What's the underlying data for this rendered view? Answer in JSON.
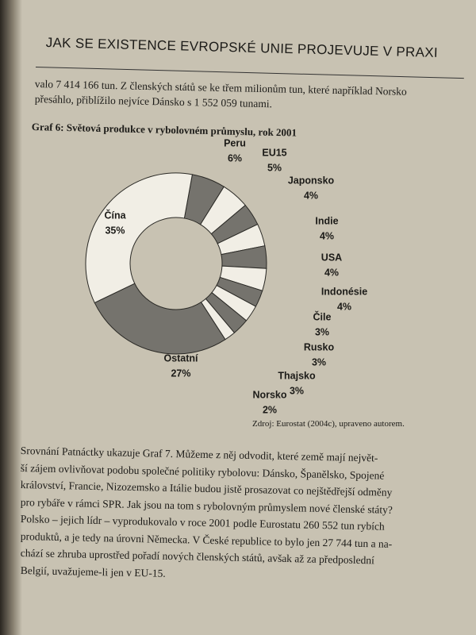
{
  "header": {
    "title": "JAK SE EXISTENCE EVROPSKÉ UNIE PROJEVUJE V PRAXI"
  },
  "intro": [
    "valo 7 414 166 tun. Z členských států se ke třem milionům tun, které například Norsko",
    "přesáhlo, přiblížilo nejvíce Dánsko s 1 552 059 tunami."
  ],
  "chart_data": {
    "type": "donut",
    "title": "Graf 6: Světová produkce v rybolovném průmyslu, rok 2001",
    "categories": [
      "Peru",
      "EU15",
      "Japonsko",
      "Indie",
      "USA",
      "Indonésie",
      "Čile",
      "Rusko",
      "Thajsko",
      "Norsko",
      "Ostatní",
      "Čína"
    ],
    "values": [
      6,
      5,
      4,
      4,
      4,
      4,
      3,
      3,
      3,
      2,
      27,
      35
    ],
    "value_labels": [
      "6%",
      "5%",
      "4%",
      "4%",
      "4%",
      "4%",
      "3%",
      "3%",
      "3%",
      "2%",
      "27%",
      "35%"
    ],
    "colors": [
      "#75736d",
      "#f1eee5",
      "#75736d",
      "#f1eee5",
      "#75736d",
      "#f1eee5",
      "#75736d",
      "#f1eee5",
      "#75736d",
      "#f1eee5",
      "#75736d",
      "#f1eee5"
    ]
  },
  "source": "Zdroj: Eurostat (2004c), upraveno autorem.",
  "body": [
    "Srovnání Patnáctky ukazuje Graf 7. Můžeme z něj odvodit, které země mají největ-",
    "ší zájem ovlivňovat podobu společné politiky rybolovu: Dánsko, Španělsko, Spojené",
    "království, Francie, Nizozemsko a Itálie budou jistě prosazovat co nejštědřejší odměny",
    "pro rybáře v rámci SPR. Jak jsou na tom s rybolovným průmyslem nové členské státy?",
    "Polsko – jejich lídr – vyprodukovalo v roce 2001 podle Eurostatu 260 552 tun rybích",
    "produktů, a je tedy na úrovni Německa. V České republice to bylo jen 27 744 tun a na-",
    "chází se zhruba uprostřed pořadí nových členských států, avšak až za předposlední",
    "Belgií, uvažujeme-li jen v EU-15."
  ]
}
